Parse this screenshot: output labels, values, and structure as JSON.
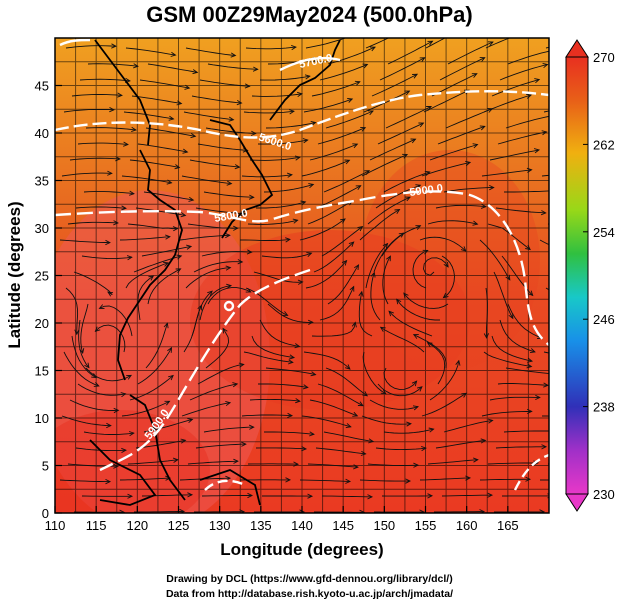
{
  "title": "GSM 00Z29May2024 (500.0hPa)",
  "map": {
    "xlabel": "Longitude (degrees)",
    "ylabel": "Latitude  (degrees)",
    "x_ticks": [
      "110",
      "115",
      "120",
      "125",
      "130",
      "135",
      "140",
      "145",
      "150",
      "155",
      "160",
      "165"
    ],
    "y_ticks": [
      "0",
      "5",
      "10",
      "15",
      "20",
      "25",
      "30",
      "35",
      "40",
      "45"
    ],
    "lon_range": [
      110,
      170
    ],
    "lat_range": [
      0,
      50
    ],
    "contour_labels": [
      "5700.0",
      "5600.0",
      "5800.0",
      "5900.0",
      "5900.0",
      "5900.0"
    ],
    "field": "temperature (K)",
    "colorbar": {
      "ticks": [
        "270",
        "262",
        "254",
        "246",
        "238",
        "230"
      ],
      "range": [
        230,
        270
      ],
      "colors": [
        "#e838c8",
        "#3030b8",
        "#1890e8",
        "#18d8a8",
        "#30c030",
        "#98d818",
        "#f0a010",
        "#e85818",
        "#e83020"
      ]
    },
    "grid": "on",
    "streamlines": "wind vectors at 500 hPa"
  },
  "footer": {
    "line1": "Drawing by DCL (https://www.gfd-dennou.org/library/dcl/)",
    "line2": "Data from http://database.rish.kyoto-u.ac.jp/arch/jmadata/"
  }
}
